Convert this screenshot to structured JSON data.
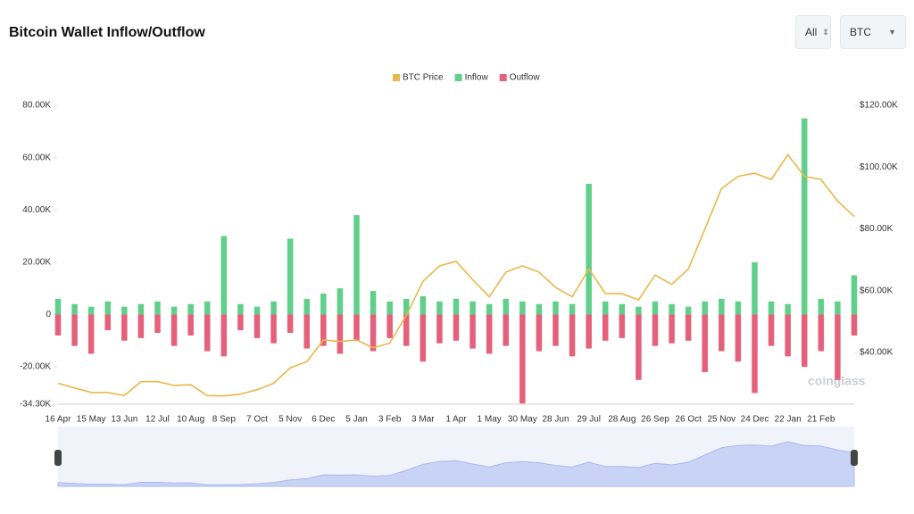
{
  "chart_data": {
    "type": "bar-line",
    "title": "Bitcoin Wallet Inflow/Outflow",
    "controls": [
      "All",
      "BTC"
    ],
    "watermark": "coinglass",
    "categories": [
      "16 Apr",
      null,
      "15 May",
      null,
      "13 Jun",
      null,
      "12 Jul",
      null,
      "10 Aug",
      null,
      "8 Sep",
      null,
      "7 Oct",
      null,
      "5 Nov",
      null,
      "6 Dec",
      null,
      "5 Jan",
      null,
      "3 Feb",
      null,
      "3 Mar",
      null,
      "1 Apr",
      null,
      "1 May",
      null,
      "30 May",
      null,
      "28 Jun",
      null,
      "29 Jul",
      null,
      "28 Aug",
      null,
      "26 Sep",
      null,
      "26 Oct",
      null,
      "25 Nov",
      null,
      "24 Dec",
      null,
      "22 Jan",
      null,
      "21 Feb",
      null,
      null
    ],
    "series": [
      {
        "name": "BTC Price",
        "color": "#e8b84a",
        "axis": "y2",
        "values": [
          30000,
          28500,
          27000,
          27000,
          26000,
          30500,
          30500,
          29300,
          29500,
          26000,
          25900,
          26500,
          27900,
          30000,
          35000,
          37000,
          44000,
          43500,
          44000,
          41500,
          43000,
          52000,
          63000,
          68000,
          69500,
          63500,
          58000,
          66000,
          68000,
          66000,
          61000,
          58000,
          67000,
          59000,
          59000,
          57000,
          65000,
          62000,
          67000,
          80000,
          93000,
          97000,
          98000,
          96000,
          104000,
          97000,
          96000,
          89000,
          84000
        ]
      },
      {
        "name": "Inflow",
        "color": "#5fcf8a",
        "values": [
          6000,
          4000,
          3000,
          5000,
          3000,
          4000,
          5000,
          3000,
          4000,
          5000,
          30000,
          4000,
          3000,
          5000,
          29000,
          6000,
          8000,
          10000,
          38000,
          9000,
          5000,
          6000,
          7000,
          5000,
          6000,
          5000,
          4000,
          6000,
          5000,
          4000,
          5000,
          4000,
          50000,
          5000,
          4000,
          3000,
          5000,
          4000,
          3000,
          5000,
          6000,
          5000,
          20000,
          5000,
          4000,
          75000,
          6000,
          5000,
          15000
        ]
      },
      {
        "name": "Outflow",
        "color": "#e5607a",
        "values": [
          -8000,
          -12000,
          -15000,
          -6000,
          -10000,
          -9000,
          -7000,
          -12000,
          -8000,
          -14000,
          -16000,
          -6000,
          -9000,
          -11000,
          -7000,
          -13000,
          -12000,
          -15000,
          -10000,
          -14000,
          -9000,
          -12000,
          -18000,
          -11000,
          -10000,
          -13000,
          -15000,
          -12000,
          -34000,
          -14000,
          -12000,
          -16000,
          -13000,
          -10000,
          -9000,
          -25000,
          -12000,
          -11000,
          -10000,
          -22000,
          -14000,
          -18000,
          -30000,
          -12000,
          -16000,
          -20000,
          -14000,
          -25000,
          -8000
        ]
      }
    ],
    "ylim": [
      -34300,
      80000
    ],
    "yticks": [
      {
        "value": -34300,
        "label": "-34.30K"
      },
      {
        "value": -20000,
        "label": "-20.00K"
      },
      0,
      {
        "value": 20000,
        "label": "20.00K"
      },
      {
        "value": 40000,
        "label": "40.00K"
      },
      {
        "value": 60000,
        "label": "60.00K"
      },
      {
        "value": 80000,
        "label": "80.00K"
      }
    ],
    "y2lim": [
      23200,
      120000
    ],
    "y2ticks": [
      {
        "value": 40000,
        "label": "$40.00K"
      },
      {
        "value": 60000,
        "label": "$60.00K"
      },
      {
        "value": 80000,
        "label": "$80.00K"
      },
      {
        "value": 100000,
        "label": "$100.00K"
      },
      {
        "value": 120000,
        "label": "$120.00K"
      }
    ],
    "grid": false
  }
}
